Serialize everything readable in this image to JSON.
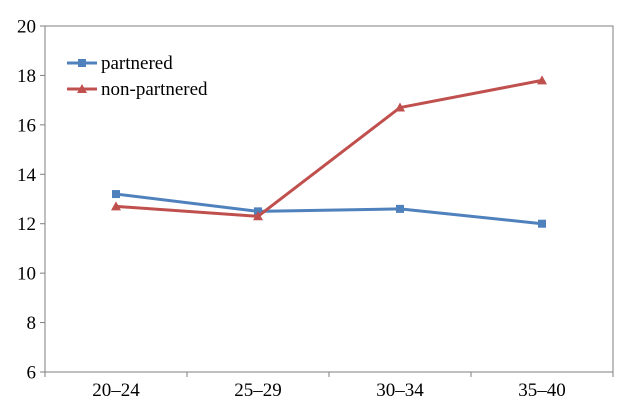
{
  "chart_data": {
    "type": "line",
    "categories": [
      "20–24",
      "25–29",
      "30–34",
      "35–40"
    ],
    "ylim": [
      6,
      20
    ],
    "yticks": [
      6,
      8,
      10,
      12,
      14,
      16,
      18,
      20
    ],
    "grid": false,
    "legend_position": "top-left",
    "series": [
      {
        "name": "partnered",
        "values": [
          13.2,
          12.5,
          12.6,
          12.0
        ],
        "color": "#4F81BD",
        "marker": "square"
      },
      {
        "name": "non-partnered",
        "values": [
          12.7,
          12.3,
          16.7,
          17.8
        ],
        "color": "#C0504D",
        "marker": "triangle"
      }
    ]
  }
}
